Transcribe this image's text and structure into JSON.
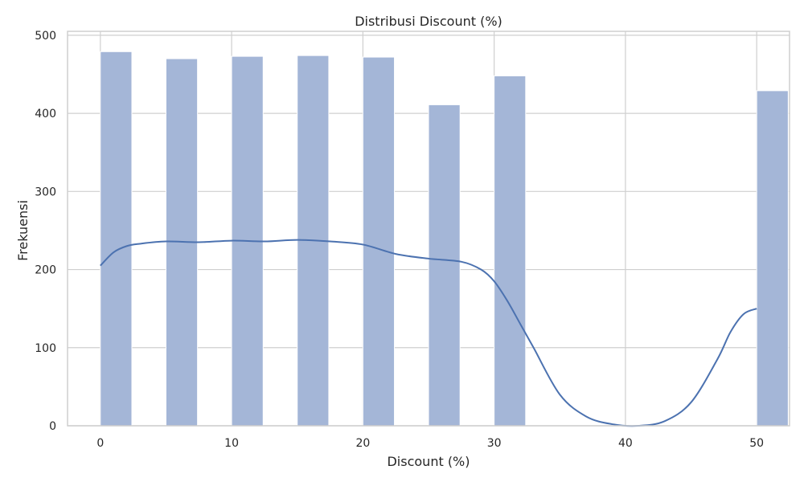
{
  "chart_data": {
    "type": "bar",
    "title": "Distribusi Discount (%)",
    "xlabel": "Discount (%)",
    "ylabel": "Frekuensi",
    "xlim": [
      -2.5,
      52.5
    ],
    "ylim": [
      0,
      505
    ],
    "x_ticks": [
      "0",
      "10",
      "20",
      "30",
      "40",
      "50"
    ],
    "y_ticks": [
      "0",
      "100",
      "200",
      "300",
      "400",
      "500"
    ],
    "grid": true,
    "bars": [
      {
        "x": 0,
        "value": 479
      },
      {
        "x": 5,
        "value": 470
      },
      {
        "x": 10,
        "value": 473
      },
      {
        "x": 15,
        "value": 474
      },
      {
        "x": 20,
        "value": 472
      },
      {
        "x": 25,
        "value": 411
      },
      {
        "x": 30,
        "value": 448
      },
      {
        "x": 50,
        "value": 429
      }
    ],
    "bar_width": 2.4,
    "kde": {
      "x": [
        0,
        1,
        2,
        3,
        5,
        7.5,
        10,
        12.5,
        15,
        17.5,
        20,
        22.5,
        25,
        27.5,
        29,
        30,
        31,
        32,
        33,
        35,
        37,
        39,
        41,
        43,
        45,
        47,
        48,
        49,
        50
      ],
      "y": [
        205,
        222,
        230,
        233,
        236,
        235,
        237,
        236,
        238,
        236,
        232,
        220,
        214,
        210,
        200,
        185,
        160,
        130,
        100,
        40,
        12,
        2,
        0,
        6,
        30,
        85,
        120,
        143,
        150
      ]
    },
    "colors": {
      "bar": "#a4b6d7",
      "bar_edge": "#ffffff",
      "line": "#4c72b0",
      "grid": "#cfcfcf",
      "spine": "#cfcfcf",
      "text": "#262626"
    }
  }
}
